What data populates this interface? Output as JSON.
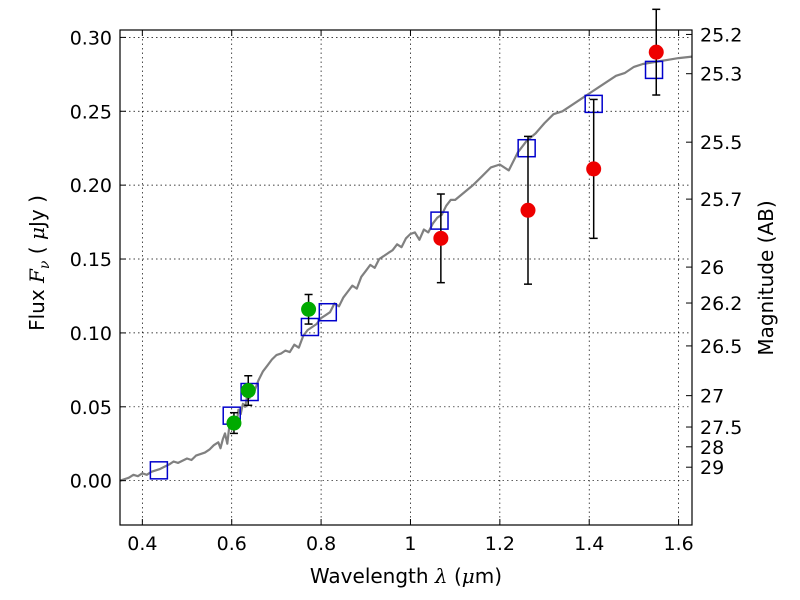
{
  "chart_data": {
    "type": "scatter",
    "xlabel": {
      "pre": "Wavelength  ",
      "sym": "λ",
      "post": " (",
      "mu": "μ",
      "unit": "m)"
    },
    "ylabel": {
      "pre": "Flux  ",
      "sym": "F",
      "sub": "ν",
      "post": "  ( ",
      "mu": "μ",
      "unit": "Jy )"
    },
    "y2label": "Magnitude (AB)",
    "xlim": [
      0.35,
      1.63
    ],
    "ylim": [
      -0.03,
      0.305
    ],
    "x_ticks": [
      {
        "value": 0.4,
        "label": "0.4"
      },
      {
        "value": 0.6,
        "label": "0.6"
      },
      {
        "value": 0.8,
        "label": "0.8"
      },
      {
        "value": 1.0,
        "label": "1"
      },
      {
        "value": 1.2,
        "label": "1.2"
      },
      {
        "value": 1.4,
        "label": "1.4"
      },
      {
        "value": 1.6,
        "label": "1.6"
      }
    ],
    "y_ticks": [
      {
        "value": 0.0,
        "label": "0.00"
      },
      {
        "value": 0.05,
        "label": "0.05"
      },
      {
        "value": 0.1,
        "label": "0.10"
      },
      {
        "value": 0.15,
        "label": "0.15"
      },
      {
        "value": 0.2,
        "label": "0.20"
      },
      {
        "value": 0.25,
        "label": "0.25"
      },
      {
        "value": 0.3,
        "label": "0.30"
      }
    ],
    "mag_ticks": [
      {
        "value": 25.2,
        "label": "25.2"
      },
      {
        "value": 25.3,
        "label": "25.3"
      },
      {
        "value": 25.5,
        "label": "25.5"
      },
      {
        "value": 25.7,
        "label": "25.7"
      },
      {
        "value": 26.0,
        "label": "26"
      },
      {
        "value": 26.2,
        "label": "26.2"
      },
      {
        "value": 26.5,
        "label": "26.5"
      },
      {
        "value": 27.0,
        "label": "27"
      },
      {
        "value": 27.5,
        "label": "27.5"
      },
      {
        "value": 28.0,
        "label": "28"
      },
      {
        "value": 29.0,
        "label": "29"
      }
    ],
    "grid": true,
    "series": [
      {
        "kind": "line",
        "color": "#808080",
        "x": [
          0.35,
          0.37,
          0.38,
          0.39,
          0.4,
          0.41,
          0.42,
          0.44,
          0.46,
          0.47,
          0.48,
          0.5,
          0.51,
          0.52,
          0.54,
          0.55,
          0.56,
          0.57,
          0.575,
          0.58,
          0.585,
          0.59,
          0.595,
          0.6,
          0.605,
          0.61,
          0.615,
          0.62,
          0.625,
          0.63,
          0.635,
          0.64,
          0.645,
          0.65,
          0.66,
          0.67,
          0.68,
          0.69,
          0.7,
          0.71,
          0.72,
          0.73,
          0.74,
          0.75,
          0.76,
          0.77,
          0.78,
          0.79,
          0.8,
          0.81,
          0.82,
          0.83,
          0.84,
          0.85,
          0.86,
          0.87,
          0.88,
          0.89,
          0.9,
          0.91,
          0.92,
          0.93,
          0.94,
          0.95,
          0.96,
          0.97,
          0.98,
          0.99,
          1.0,
          1.01,
          1.02,
          1.03,
          1.04,
          1.05,
          1.06,
          1.07,
          1.08,
          1.09,
          1.1,
          1.12,
          1.14,
          1.16,
          1.18,
          1.2,
          1.22,
          1.24,
          1.25,
          1.26,
          1.28,
          1.3,
          1.32,
          1.34,
          1.36,
          1.38,
          1.4,
          1.42,
          1.44,
          1.46,
          1.48,
          1.5,
          1.52,
          1.54,
          1.56,
          1.58,
          1.6,
          1.63
        ],
        "y": [
          0.0,
          0.002,
          0.004,
          0.003,
          0.005,
          0.004,
          0.006,
          0.008,
          0.011,
          0.013,
          0.012,
          0.015,
          0.014,
          0.017,
          0.019,
          0.021,
          0.024,
          0.026,
          0.022,
          0.028,
          0.032,
          0.025,
          0.038,
          0.035,
          0.042,
          0.036,
          0.048,
          0.045,
          0.052,
          0.05,
          0.058,
          0.056,
          0.062,
          0.06,
          0.068,
          0.074,
          0.078,
          0.082,
          0.085,
          0.086,
          0.088,
          0.087,
          0.092,
          0.09,
          0.098,
          0.102,
          0.104,
          0.106,
          0.11,
          0.112,
          0.114,
          0.12,
          0.118,
          0.124,
          0.128,
          0.132,
          0.13,
          0.138,
          0.142,
          0.146,
          0.144,
          0.15,
          0.152,
          0.154,
          0.156,
          0.16,
          0.158,
          0.164,
          0.167,
          0.168,
          0.163,
          0.17,
          0.168,
          0.174,
          0.178,
          0.18,
          0.186,
          0.19,
          0.19,
          0.195,
          0.2,
          0.206,
          0.212,
          0.214,
          0.21,
          0.222,
          0.226,
          0.23,
          0.235,
          0.242,
          0.248,
          0.25,
          0.254,
          0.258,
          0.262,
          0.266,
          0.27,
          0.274,
          0.276,
          0.28,
          0.282,
          0.283,
          0.284,
          0.285,
          0.286,
          0.287
        ]
      },
      {
        "kind": "squares",
        "color": "#0000cc",
        "x": [
          0.437,
          0.6,
          0.64,
          0.775,
          0.815,
          1.065,
          1.26,
          1.41,
          1.545
        ],
        "y": [
          0.007,
          0.044,
          0.06,
          0.104,
          0.114,
          0.176,
          0.225,
          0.255,
          0.278
        ]
      },
      {
        "kind": "points",
        "color": "#00aa00",
        "x": [
          0.605,
          0.637,
          0.772
        ],
        "y": [
          0.039,
          0.061,
          0.116
        ],
        "err": [
          0.007,
          0.01,
          0.01
        ]
      },
      {
        "kind": "points",
        "color": "#ee0000",
        "x": [
          1.068,
          1.263,
          1.41,
          1.55
        ],
        "y": [
          0.164,
          0.183,
          0.211,
          0.29
        ],
        "err": [
          0.03,
          0.05,
          0.047,
          0.029
        ]
      }
    ]
  }
}
